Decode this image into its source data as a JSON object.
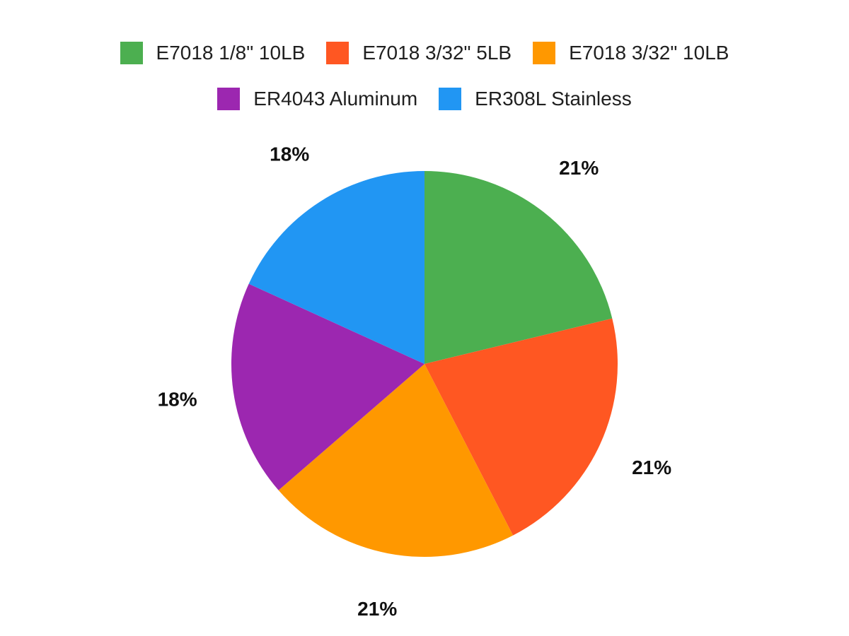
{
  "chart_data": {
    "type": "pie",
    "slices": [
      {
        "name": "E7018 1/8\" 10LB",
        "value": 21,
        "label": "21%",
        "color": "#4CAF50"
      },
      {
        "name": "E7018 3/32\" 5LB",
        "value": 21,
        "label": "21%",
        "color": "#FF5722"
      },
      {
        "name": "E7018 3/32\" 10LB",
        "value": 21,
        "label": "21%",
        "color": "#FF9800"
      },
      {
        "name": "ER4043 Aluminum",
        "value": 18,
        "label": "18%",
        "color": "#9C27B0"
      },
      {
        "name": "ER308L Stainless",
        "value": 18,
        "label": "18%",
        "color": "#2196F3"
      }
    ],
    "legend": {
      "placement": "top"
    },
    "start_angle": "12 o'clock",
    "direction": "clockwise"
  }
}
